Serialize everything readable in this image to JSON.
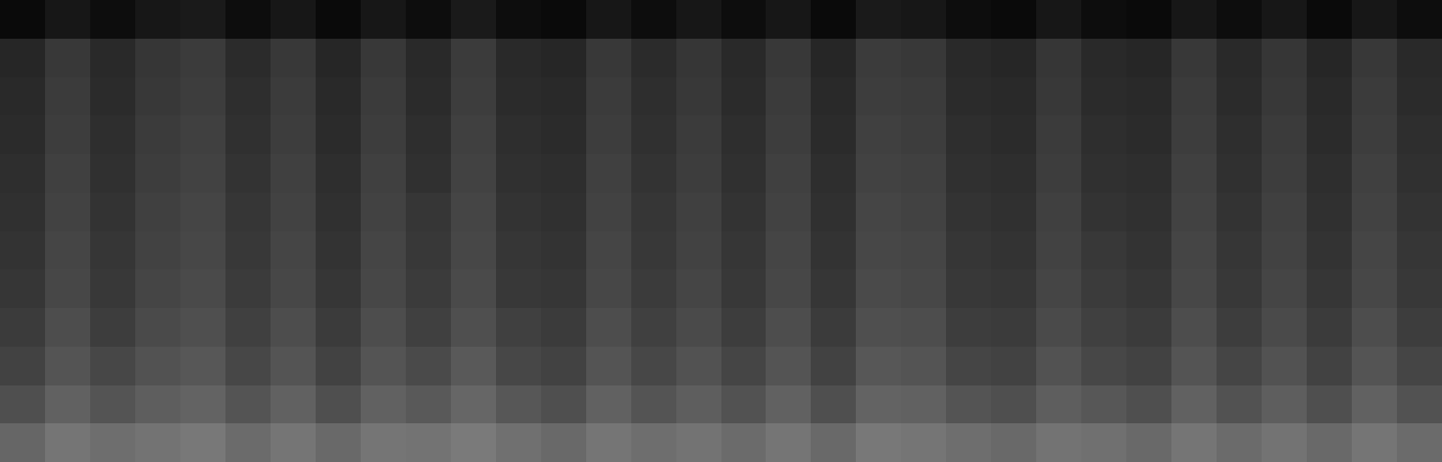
{
  "chart_data": {
    "type": "heatmap",
    "tick_labels": false,
    "color": "#ffffff",
    "zlim": [
      0,
      100
    ],
    "cells": [
      [
        4,
        9,
        5,
        9,
        10,
        5,
        9,
        4,
        9,
        5,
        10,
        5,
        4,
        9,
        5,
        9,
        5,
        9,
        4,
        10,
        9,
        5,
        4,
        9,
        5,
        4,
        9,
        5,
        9,
        4,
        9,
        5
      ],
      [
        15,
        22,
        16,
        21,
        23,
        17,
        22,
        15,
        22,
        16,
        23,
        16,
        15,
        22,
        17,
        21,
        16,
        22,
        15,
        23,
        22,
        16,
        15,
        21,
        16,
        15,
        22,
        16,
        21,
        15,
        22,
        16
      ],
      [
        16,
        23,
        17,
        22,
        24,
        18,
        23,
        16,
        23,
        17,
        24,
        17,
        16,
        23,
        18,
        22,
        17,
        23,
        16,
        24,
        23,
        17,
        16,
        22,
        17,
        16,
        23,
        17,
        22,
        16,
        23,
        17
      ],
      [
        17,
        24,
        18,
        23,
        25,
        19,
        24,
        17,
        24,
        18,
        25,
        18,
        17,
        24,
        19,
        23,
        18,
        24,
        17,
        25,
        24,
        18,
        17,
        23,
        18,
        17,
        24,
        18,
        23,
        17,
        24,
        18
      ],
      [
        18,
        25,
        19,
        24,
        26,
        20,
        25,
        18,
        25,
        19,
        26,
        19,
        18,
        25,
        20,
        24,
        19,
        25,
        18,
        26,
        25,
        19,
        18,
        24,
        19,
        18,
        25,
        19,
        24,
        18,
        25,
        19
      ],
      [
        19,
        26,
        20,
        25,
        27,
        21,
        26,
        19,
        26,
        21,
        27,
        20,
        19,
        26,
        21,
        25,
        20,
        26,
        19,
        27,
        26,
        20,
        19,
        25,
        20,
        19,
        26,
        20,
        25,
        19,
        26,
        20
      ],
      [
        20,
        27,
        21,
        26,
        28,
        22,
        27,
        20,
        27,
        22,
        28,
        21,
        20,
        27,
        22,
        26,
        21,
        27,
        20,
        28,
        27,
        21,
        20,
        26,
        22,
        20,
        27,
        21,
        26,
        20,
        27,
        21
      ],
      [
        21,
        28,
        22,
        27,
        29,
        23,
        28,
        21,
        28,
        23,
        29,
        22,
        21,
        28,
        23,
        27,
        22,
        28,
        21,
        29,
        28,
        22,
        21,
        27,
        23,
        21,
        28,
        22,
        27,
        21,
        28,
        22
      ],
      [
        23,
        30,
        24,
        29,
        31,
        25,
        30,
        23,
        30,
        25,
        31,
        25,
        23,
        30,
        25,
        29,
        24,
        30,
        23,
        31,
        30,
        24,
        23,
        29,
        25,
        23,
        30,
        24,
        29,
        23,
        30,
        24
      ],
      [
        26,
        33,
        28,
        32,
        34,
        28,
        33,
        26,
        33,
        29,
        35,
        28,
        26,
        33,
        28,
        32,
        27,
        33,
        26,
        34,
        33,
        27,
        26,
        32,
        28,
        26,
        33,
        27,
        32,
        26,
        33,
        27
      ],
      [
        31,
        38,
        33,
        37,
        39,
        33,
        38,
        31,
        38,
        35,
        40,
        34,
        31,
        38,
        33,
        37,
        32,
        38,
        31,
        39,
        38,
        33,
        31,
        37,
        34,
        31,
        38,
        32,
        37,
        31,
        38,
        32
      ],
      [
        40,
        46,
        43,
        45,
        47,
        42,
        46,
        41,
        46,
        45,
        48,
        44,
        41,
        46,
        43,
        45,
        42,
        46,
        41,
        47,
        46,
        43,
        41,
        45,
        44,
        41,
        46,
        42,
        45,
        41,
        46,
        42
      ]
    ]
  }
}
